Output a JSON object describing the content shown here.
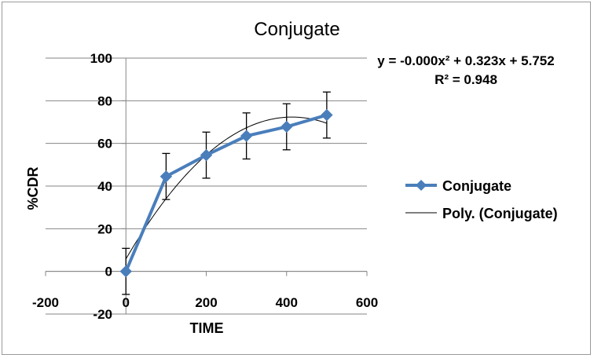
{
  "chart_data": {
    "type": "scatter",
    "title": "Conjugate",
    "xlabel": "TIME",
    "ylabel": "%CDR",
    "xlim": [
      -200,
      600
    ],
    "ylim": [
      -20,
      100
    ],
    "x_ticks": [
      -200,
      0,
      200,
      400,
      600
    ],
    "y_ticks": [
      -20,
      0,
      20,
      40,
      60,
      80,
      100
    ],
    "grid": "horizontal major gridlines",
    "legend_position": "right",
    "series": [
      {
        "name": "Conjugate",
        "color": "#4a7ebb",
        "marker": "diamond",
        "x": [
          0,
          100,
          200,
          300,
          400,
          500
        ],
        "y": [
          0,
          44.5,
          54.5,
          63.5,
          67.8,
          73.3
        ],
        "error_bars": [
          10.8,
          10.8,
          10.8,
          10.8,
          10.8,
          10.8
        ]
      },
      {
        "name": "Poly. (Conjugate)",
        "color": "#000000",
        "trendline": "polynomial order 2",
        "equation": "y = -0.000x² + 0.323x + 5.752",
        "r_squared": "R² = 0.948"
      }
    ]
  }
}
